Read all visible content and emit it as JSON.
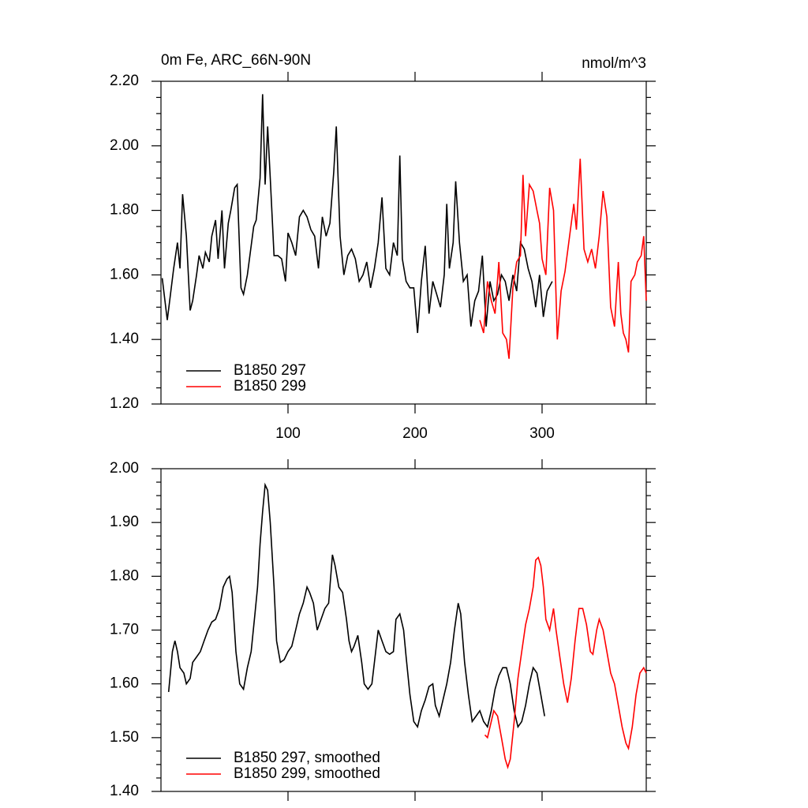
{
  "chart_data": [
    {
      "type": "line",
      "title": "0m Fe, ARC_66N-90N",
      "units": "nmol/m^3",
      "xlim": [
        0,
        382
      ],
      "xticks": [
        100,
        200,
        300
      ],
      "ylim": [
        1.2,
        2.2
      ],
      "yticks": [
        {
          "value": 1.2,
          "label": "1.20"
        },
        {
          "value": 1.4,
          "label": "1.40"
        },
        {
          "value": 1.6,
          "label": "1.60"
        },
        {
          "value": 1.8,
          "label": "1.80"
        },
        {
          "value": 2.0,
          "label": "2.00"
        },
        {
          "value": 2.2,
          "label": "2.20"
        }
      ],
      "series": [
        {
          "name": "B1850 297",
          "color": "#000000",
          "x": [
            1,
            5,
            10,
            13,
            15,
            17,
            20,
            23,
            25,
            28,
            30,
            33,
            35,
            38,
            40,
            43,
            45,
            48,
            50,
            53,
            55,
            58,
            60,
            63,
            65,
            68,
            70,
            73,
            75,
            78,
            80,
            82,
            84,
            86,
            89,
            92,
            95,
            98,
            100,
            103,
            106,
            109,
            112,
            115,
            118,
            121,
            124,
            127,
            130,
            133,
            136,
            138,
            141,
            144,
            147,
            150,
            153,
            156,
            159,
            162,
            165,
            168,
            171,
            174,
            177,
            180,
            183,
            186,
            188,
            190,
            193,
            196,
            199,
            202,
            205,
            208,
            211,
            214,
            217,
            220,
            223,
            225,
            227,
            230,
            232,
            235,
            238,
            241,
            244,
            247,
            250,
            253,
            256,
            259,
            262,
            265,
            268,
            271,
            274,
            277,
            280,
            283,
            286,
            289,
            292,
            295,
            298,
            301,
            304,
            308
          ],
          "values": [
            1.59,
            1.46,
            1.62,
            1.7,
            1.62,
            1.85,
            1.72,
            1.49,
            1.52,
            1.6,
            1.66,
            1.62,
            1.67,
            1.64,
            1.72,
            1.77,
            1.65,
            1.8,
            1.62,
            1.76,
            1.8,
            1.87,
            1.88,
            1.56,
            1.54,
            1.6,
            1.66,
            1.75,
            1.77,
            1.9,
            2.16,
            1.88,
            2.06,
            1.9,
            1.66,
            1.66,
            1.65,
            1.58,
            1.73,
            1.7,
            1.66,
            1.78,
            1.8,
            1.78,
            1.74,
            1.72,
            1.62,
            1.78,
            1.72,
            1.76,
            1.92,
            2.06,
            1.72,
            1.6,
            1.66,
            1.68,
            1.65,
            1.58,
            1.6,
            1.64,
            1.56,
            1.62,
            1.7,
            1.84,
            1.62,
            1.6,
            1.7,
            1.66,
            1.97,
            1.65,
            1.58,
            1.56,
            1.56,
            1.42,
            1.58,
            1.69,
            1.48,
            1.58,
            1.54,
            1.5,
            1.6,
            1.82,
            1.62,
            1.7,
            1.89,
            1.7,
            1.58,
            1.6,
            1.44,
            1.52,
            1.55,
            1.66,
            1.44,
            1.58,
            1.52,
            1.54,
            1.6,
            1.58,
            1.52,
            1.6,
            1.55,
            1.7,
            1.68,
            1.62,
            1.58,
            1.5,
            1.6,
            1.47,
            1.55,
            1.58
          ]
        },
        {
          "name": "B1850 299",
          "color": "#ff0000",
          "x": [
            251,
            254,
            257,
            260,
            263,
            266,
            269,
            272,
            274,
            277,
            280,
            283,
            285,
            287,
            290,
            293,
            296,
            298,
            300,
            303,
            306,
            309,
            312,
            315,
            318,
            321,
            325,
            327,
            330,
            333,
            336,
            339,
            342,
            345,
            348,
            351,
            354,
            357,
            360,
            362,
            364,
            366,
            368,
            370,
            373,
            375,
            378,
            380,
            382
          ],
          "values": [
            1.46,
            1.42,
            1.58,
            1.52,
            1.48,
            1.64,
            1.42,
            1.4,
            1.34,
            1.56,
            1.64,
            1.66,
            1.91,
            1.72,
            1.88,
            1.86,
            1.8,
            1.76,
            1.65,
            1.6,
            1.87,
            1.8,
            1.4,
            1.55,
            1.61,
            1.7,
            1.82,
            1.74,
            1.96,
            1.68,
            1.64,
            1.68,
            1.62,
            1.72,
            1.86,
            1.78,
            1.5,
            1.44,
            1.64,
            1.48,
            1.42,
            1.4,
            1.36,
            1.58,
            1.6,
            1.64,
            1.66,
            1.72,
            1.52
          ]
        }
      ]
    },
    {
      "type": "line",
      "xlim": [
        0,
        382
      ],
      "xticks": [
        100,
        200,
        300
      ],
      "show_xtick_labels": false,
      "ylim": [
        1.4,
        2.0
      ],
      "yticks": [
        {
          "value": 1.4,
          "label": "1.40"
        },
        {
          "value": 1.5,
          "label": "1.50"
        },
        {
          "value": 1.6,
          "label": "1.60"
        },
        {
          "value": 1.7,
          "label": "1.70"
        },
        {
          "value": 1.8,
          "label": "1.80"
        },
        {
          "value": 1.9,
          "label": "1.90"
        },
        {
          "value": 2.0,
          "label": "2.00"
        }
      ],
      "series": [
        {
          "name": "B1850 297, smoothed",
          "color": "#000000",
          "x": [
            6,
            9,
            11,
            13,
            15,
            18,
            20,
            23,
            25,
            28,
            31,
            34,
            37,
            40,
            43,
            46,
            49,
            52,
            54,
            56,
            59,
            62,
            65,
            68,
            71,
            74,
            76,
            78,
            80,
            82,
            84,
            86,
            89,
            91,
            94,
            97,
            100,
            103,
            106,
            109,
            112,
            115,
            117,
            120,
            123,
            126,
            129,
            132,
            135,
            137,
            140,
            143,
            146,
            148,
            150,
            152,
            155,
            158,
            160,
            163,
            166,
            169,
            171,
            174,
            177,
            180,
            183,
            185,
            188,
            191,
            193,
            196,
            199,
            202,
            205,
            208,
            211,
            214,
            216,
            219,
            222,
            225,
            228,
            231,
            234,
            236,
            239,
            242,
            245,
            248,
            251,
            254,
            257,
            260,
            263,
            266,
            269,
            272,
            275,
            278,
            281,
            284,
            287,
            290,
            293,
            296,
            299,
            302
          ],
          "values": [
            1.585,
            1.66,
            1.68,
            1.66,
            1.63,
            1.62,
            1.6,
            1.61,
            1.64,
            1.65,
            1.66,
            1.68,
            1.7,
            1.715,
            1.72,
            1.74,
            1.78,
            1.795,
            1.8,
            1.77,
            1.66,
            1.6,
            1.59,
            1.63,
            1.66,
            1.73,
            1.78,
            1.86,
            1.92,
            1.97,
            1.96,
            1.9,
            1.78,
            1.68,
            1.64,
            1.645,
            1.66,
            1.67,
            1.7,
            1.73,
            1.75,
            1.78,
            1.77,
            1.75,
            1.7,
            1.72,
            1.74,
            1.75,
            1.84,
            1.82,
            1.78,
            1.77,
            1.72,
            1.68,
            1.66,
            1.67,
            1.69,
            1.64,
            1.6,
            1.59,
            1.6,
            1.66,
            1.7,
            1.68,
            1.66,
            1.655,
            1.66,
            1.72,
            1.73,
            1.7,
            1.65,
            1.58,
            1.53,
            1.52,
            1.55,
            1.57,
            1.595,
            1.6,
            1.56,
            1.54,
            1.57,
            1.6,
            1.64,
            1.7,
            1.75,
            1.73,
            1.64,
            1.58,
            1.53,
            1.54,
            1.55,
            1.53,
            1.52,
            1.55,
            1.59,
            1.615,
            1.63,
            1.63,
            1.6,
            1.55,
            1.52,
            1.53,
            1.56,
            1.6,
            1.63,
            1.62,
            1.58,
            1.54
          ]
        },
        {
          "name": "B1850 299, smoothed",
          "color": "#ff0000",
          "x": [
            255,
            257,
            259,
            262,
            265,
            268,
            271,
            273,
            275,
            278,
            281,
            284,
            287,
            290,
            293,
            295,
            297,
            299,
            301,
            303,
            306,
            309,
            311,
            314,
            317,
            320,
            323,
            326,
            329,
            332,
            335,
            338,
            340,
            343,
            345,
            348,
            351,
            354,
            357,
            360,
            363,
            366,
            368,
            371,
            374,
            377,
            380,
            382
          ],
          "values": [
            1.505,
            1.5,
            1.52,
            1.55,
            1.54,
            1.5,
            1.46,
            1.445,
            1.46,
            1.53,
            1.61,
            1.66,
            1.71,
            1.74,
            1.78,
            1.83,
            1.835,
            1.82,
            1.78,
            1.72,
            1.7,
            1.74,
            1.7,
            1.65,
            1.6,
            1.565,
            1.61,
            1.68,
            1.74,
            1.74,
            1.71,
            1.66,
            1.655,
            1.7,
            1.72,
            1.7,
            1.66,
            1.62,
            1.6,
            1.56,
            1.52,
            1.49,
            1.48,
            1.52,
            1.58,
            1.62,
            1.63,
            1.62
          ]
        }
      ]
    }
  ]
}
